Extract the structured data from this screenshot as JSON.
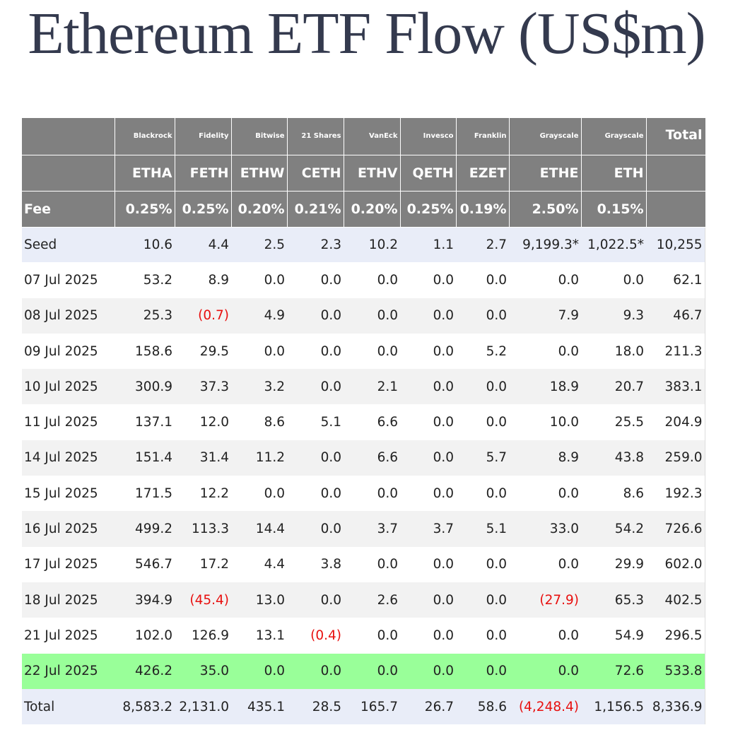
{
  "title": "Ethereum ETF Flow (US$m)",
  "colors": {
    "title": "#343a4e",
    "header_bg": "#808080",
    "header_text": "#ffffff",
    "seed_row_bg": "#e9edf8",
    "alt_row_bg": "#f2f2f2",
    "highlight_row_bg": "#99ff99",
    "negative_text": "#e8100f"
  },
  "header": {
    "issuers": [
      "Blackrock",
      "Fidelity",
      "Bitwise",
      "21 Shares",
      "VanEck",
      "Invesco",
      "Franklin",
      "Grayscale",
      "Grayscale"
    ],
    "total_label": "Total",
    "tickers": [
      "ETHA",
      "FETH",
      "ETHW",
      "CETH",
      "ETHV",
      "QETH",
      "EZET",
      "ETHE",
      "ETH"
    ],
    "fee_label": "Fee",
    "fees": [
      "0.25%",
      "0.25%",
      "0.20%",
      "0.21%",
      "0.20%",
      "0.25%",
      "0.19%",
      "2.50%",
      "0.15%"
    ]
  },
  "rows": [
    {
      "label": "Seed",
      "style": "seed",
      "values": [
        "10.6",
        "4.4",
        "2.5",
        "2.3",
        "10.2",
        "1.1",
        "2.7",
        "9,199.3*",
        "1,022.5*",
        "10,255"
      ]
    },
    {
      "label": "07 Jul 2025",
      "style": "white",
      "values": [
        "53.2",
        "8.9",
        "0.0",
        "0.0",
        "0.0",
        "0.0",
        "0.0",
        "0.0",
        "0.0",
        "62.1"
      ]
    },
    {
      "label": "08 Jul 2025",
      "style": "grey",
      "values": [
        "25.3",
        "(0.7)",
        "4.9",
        "0.0",
        "0.0",
        "0.0",
        "0.0",
        "7.9",
        "9.3",
        "46.7"
      ]
    },
    {
      "label": "09 Jul 2025",
      "style": "white",
      "values": [
        "158.6",
        "29.5",
        "0.0",
        "0.0",
        "0.0",
        "0.0",
        "5.2",
        "0.0",
        "18.0",
        "211.3"
      ]
    },
    {
      "label": "10 Jul 2025",
      "style": "grey",
      "values": [
        "300.9",
        "37.3",
        "3.2",
        "0.0",
        "2.1",
        "0.0",
        "0.0",
        "18.9",
        "20.7",
        "383.1"
      ]
    },
    {
      "label": "11 Jul 2025",
      "style": "white",
      "values": [
        "137.1",
        "12.0",
        "8.6",
        "5.1",
        "6.6",
        "0.0",
        "0.0",
        "10.0",
        "25.5",
        "204.9"
      ]
    },
    {
      "label": "14 Jul 2025",
      "style": "grey",
      "values": [
        "151.4",
        "31.4",
        "11.2",
        "0.0",
        "6.6",
        "0.0",
        "5.7",
        "8.9",
        "43.8",
        "259.0"
      ]
    },
    {
      "label": "15 Jul 2025",
      "style": "white",
      "values": [
        "171.5",
        "12.2",
        "0.0",
        "0.0",
        "0.0",
        "0.0",
        "0.0",
        "0.0",
        "8.6",
        "192.3"
      ]
    },
    {
      "label": "16 Jul 2025",
      "style": "grey",
      "values": [
        "499.2",
        "113.3",
        "14.4",
        "0.0",
        "3.7",
        "3.7",
        "5.1",
        "33.0",
        "54.2",
        "726.6"
      ]
    },
    {
      "label": "17 Jul 2025",
      "style": "white",
      "values": [
        "546.7",
        "17.2",
        "4.4",
        "3.8",
        "0.0",
        "0.0",
        "0.0",
        "0.0",
        "29.9",
        "602.0"
      ]
    },
    {
      "label": "18 Jul 2025",
      "style": "grey",
      "values": [
        "394.9",
        "(45.4)",
        "13.0",
        "0.0",
        "2.6",
        "0.0",
        "0.0",
        "(27.9)",
        "65.3",
        "402.5"
      ]
    },
    {
      "label": "21 Jul 2025",
      "style": "white",
      "values": [
        "102.0",
        "126.9",
        "13.1",
        "(0.4)",
        "0.0",
        "0.0",
        "0.0",
        "0.0",
        "54.9",
        "296.5"
      ]
    },
    {
      "label": "22 Jul 2025",
      "style": "green",
      "values": [
        "426.2",
        "35.0",
        "0.0",
        "0.0",
        "0.0",
        "0.0",
        "0.0",
        "0.0",
        "72.6",
        "533.8"
      ]
    },
    {
      "label": "Total",
      "style": "total",
      "values": [
        "8,583.2",
        "2,131.0",
        "435.1",
        "28.5",
        "165.7",
        "26.7",
        "58.6",
        "(4,248.4)",
        "1,156.5",
        "8,336.9"
      ]
    }
  ]
}
